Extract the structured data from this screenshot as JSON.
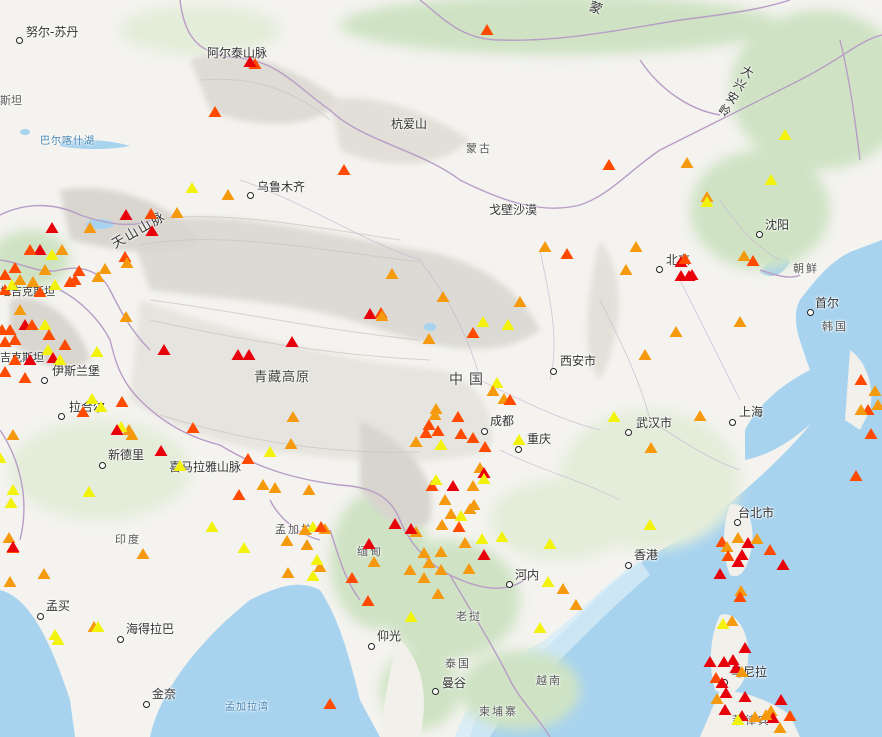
{
  "marker_colors": {
    "red": "#e8000b",
    "orange_red": "#ff4a00",
    "orange": "#f59a0e",
    "yellow": "#f2f20c"
  },
  "colors": {
    "sea": "#a8d3ef",
    "land": "#f4f3ef",
    "forest": "#cfe3c4",
    "border": "#b89dc6"
  },
  "icons": {
    "city": "city-dot-icon",
    "event": "triangle-marker-icon"
  },
  "labels": {
    "nursultan": "努尔-苏丹",
    "altai": "阿尔泰山脉",
    "kazakhstan_part": "斯坦",
    "balkhash": "巴尔喀什湖",
    "urumqi": "乌鲁木齐",
    "hangay": "杭爱山",
    "mongolia": "蒙古",
    "gobi": "戈壁沙漠",
    "tianshan": "天山山脉",
    "khingan": "大兴安岭",
    "shenyang": "沈阳",
    "beijing": "北京",
    "korea_n": "朝鲜",
    "seoul": "首尔",
    "korea_s": "韩国",
    "tibet": "青藏高原",
    "china": "中国",
    "xian": "西安市",
    "chengdu": "成都",
    "chongqing": "重庆",
    "wuhan": "武汉市",
    "shanghai": "上海",
    "islamabad": "伊斯兰堡",
    "lahore": "拉合尔",
    "newdelhi": "新德里",
    "himalaya": "喜马拉雅山脉",
    "kyrgyz_part": "吉克斯坦",
    "tajik_part": "塔吉克斯坦",
    "bangladesh": "孟加拉",
    "myanmar": "缅甸",
    "india": "印度",
    "taipei": "台北市",
    "hongkong": "香港",
    "hanoi": "河内",
    "laos": "老挝",
    "mumbai": "孟买",
    "hyderabad": "海得拉巴",
    "yangon": "仰光",
    "thailand": "泰国",
    "bangkok": "曼谷",
    "vietnam": "越南",
    "manila": "马尼拉",
    "chennai": "金奈",
    "bay_of_bengal": "孟加拉湾",
    "cambodia": "柬埔寨",
    "philippines": "菲律宾",
    "mongolia_corner": "蒙"
  }
}
